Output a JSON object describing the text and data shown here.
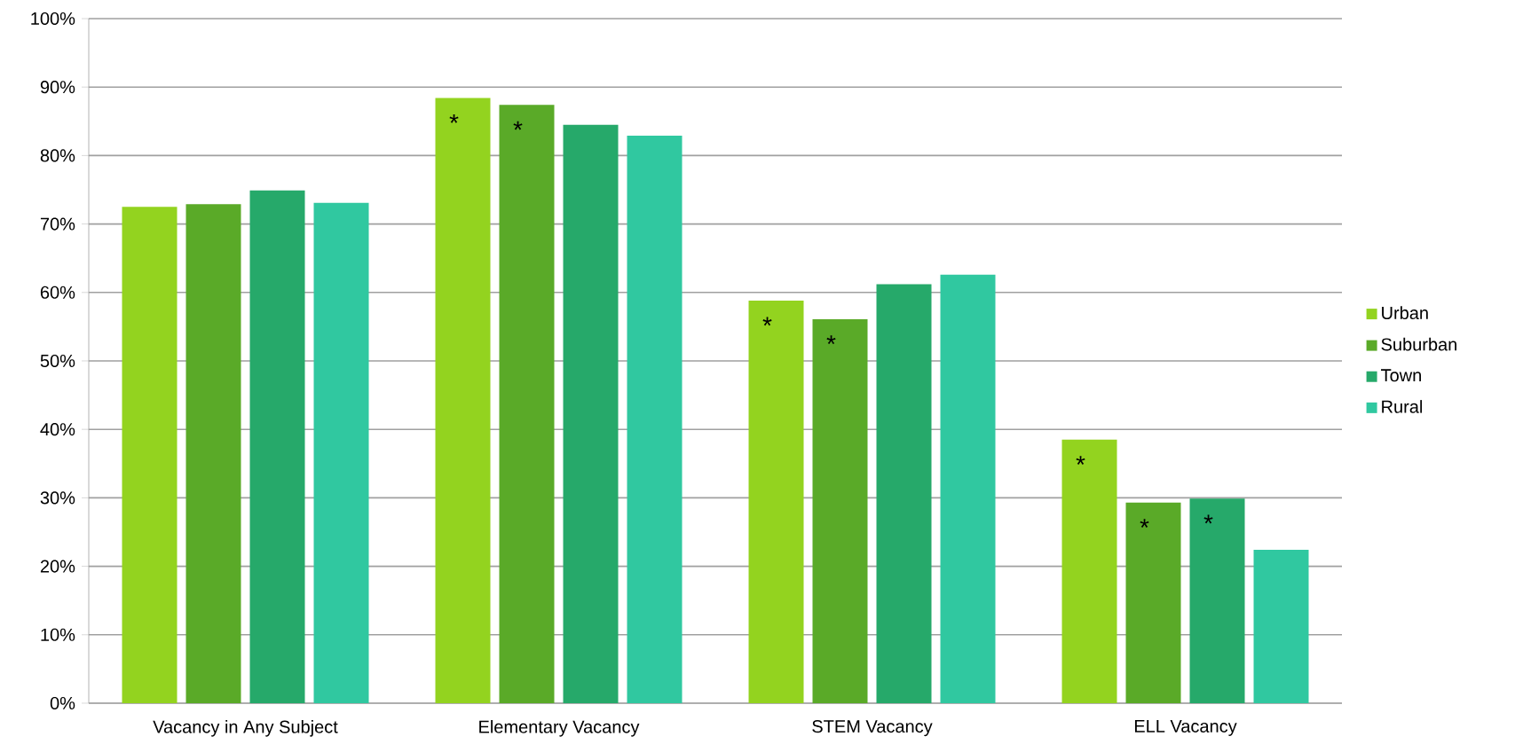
{
  "chart_data": {
    "type": "bar",
    "categories": [
      "Vacancy in Any Subject",
      "Elementary Vacancy",
      "STEM Vacancy",
      "ELL Vacancy"
    ],
    "series": [
      {
        "name": "Urban",
        "color": "#93d31f",
        "values": [
          72.5,
          88.4,
          58.8,
          38.5
        ]
      },
      {
        "name": "Suburban",
        "color": "#5aaa28",
        "values": [
          72.9,
          87.4,
          56.1,
          29.3
        ]
      },
      {
        "name": "Town",
        "color": "#26a96a",
        "values": [
          74.9,
          84.5,
          61.2,
          29.9
        ]
      },
      {
        "name": "Rural",
        "color": "#30c8a0",
        "values": [
          73.1,
          82.9,
          62.6,
          22.4
        ]
      }
    ],
    "ylim": [
      0,
      100
    ],
    "yticks": [
      {
        "value": 0,
        "label": "0%"
      },
      {
        "value": 10,
        "label": "10%"
      },
      {
        "value": 20,
        "label": "20%"
      },
      {
        "value": 30,
        "label": "30%"
      },
      {
        "value": 40,
        "label": "40%"
      },
      {
        "value": 50,
        "label": "50%"
      },
      {
        "value": 60,
        "label": "60%"
      },
      {
        "value": 70,
        "label": "70%"
      },
      {
        "value": 80,
        "label": "80%"
      },
      {
        "value": 90,
        "label": "90%"
      },
      {
        "value": 100,
        "label": "100%"
      }
    ],
    "grid": "y",
    "legend": "right",
    "annotations": [
      "*",
      "*",
      "*",
      "*",
      "*",
      "*",
      "*"
    ]
  }
}
